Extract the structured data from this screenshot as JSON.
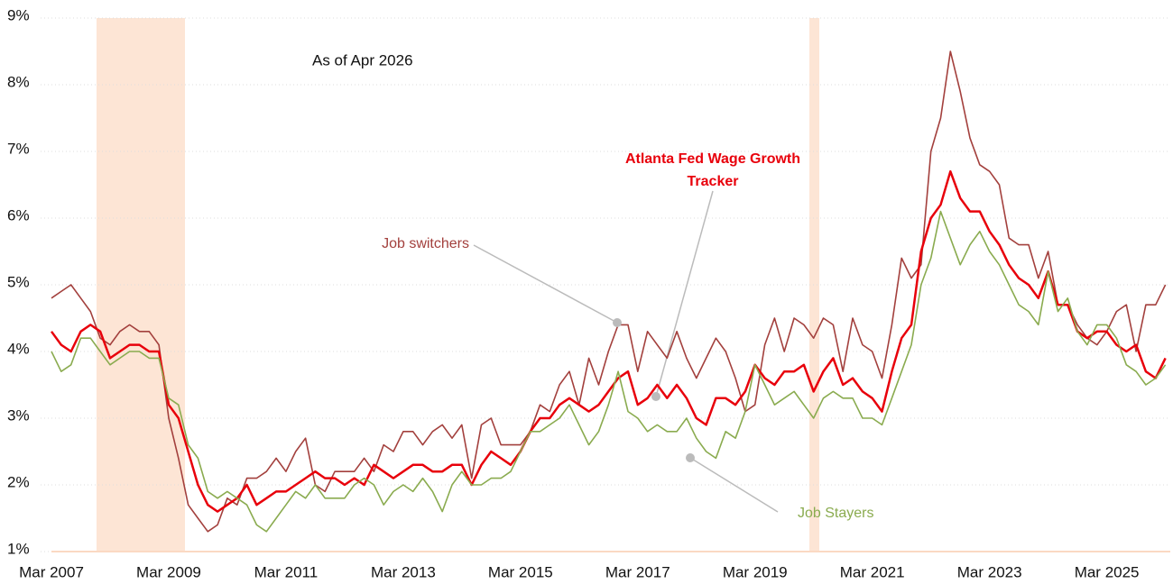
{
  "chart_data": {
    "type": "line",
    "annotation": "As of Apr 2026",
    "categories": [
      "Mar 2007",
      null,
      null,
      null,
      null,
      null,
      null,
      null,
      null,
      null,
      null,
      null,
      "Mar 2009",
      null,
      null,
      null,
      null,
      null,
      null,
      null,
      null,
      null,
      null,
      null,
      "Mar 2011",
      null,
      null,
      null,
      null,
      null,
      null,
      null,
      null,
      null,
      null,
      null,
      "Mar 2013",
      null,
      null,
      null,
      null,
      null,
      null,
      null,
      null,
      null,
      null,
      null,
      "Mar 2015",
      null,
      null,
      null,
      null,
      null,
      null,
      null,
      null,
      null,
      null,
      null,
      "Mar 2017",
      null,
      null,
      null,
      null,
      null,
      null,
      null,
      null,
      null,
      null,
      null,
      "Mar 2019",
      null,
      null,
      null,
      null,
      null,
      null,
      null,
      null,
      null,
      null,
      null,
      "Mar 2021",
      null,
      null,
      null,
      null,
      null,
      null,
      null,
      null,
      null,
      null,
      null,
      "Mar 2023",
      null,
      null,
      null,
      null,
      null,
      null,
      null,
      null,
      null,
      null,
      null,
      "Mar 2025",
      null,
      null,
      null,
      null,
      null,
      null
    ],
    "ylim": [
      1,
      9
    ],
    "yticks": [
      {
        "value": 1,
        "label": "1%"
      },
      {
        "value": 2,
        "label": "2%"
      },
      {
        "value": 3,
        "label": "3%"
      },
      {
        "value": 4,
        "label": "4%"
      },
      {
        "value": 5,
        "label": "5%"
      },
      {
        "value": 6,
        "label": "6%"
      },
      {
        "value": 7,
        "label": "7%"
      },
      {
        "value": 8,
        "label": "8%"
      },
      {
        "value": 9,
        "label": "9%"
      }
    ],
    "grid": true,
    "series": [
      {
        "name": "Job switchers",
        "color": "#a3403d",
        "values": [
          4.8,
          4.9,
          5.0,
          4.8,
          4.6,
          4.2,
          4.1,
          4.3,
          4.4,
          4.3,
          4.3,
          4.1,
          3.0,
          2.4,
          1.7,
          1.5,
          1.3,
          1.4,
          1.8,
          1.7,
          2.1,
          2.1,
          2.2,
          2.4,
          2.2,
          2.5,
          2.7,
          2.0,
          1.9,
          2.2,
          2.2,
          2.2,
          2.4,
          2.2,
          2.6,
          2.5,
          2.8,
          2.8,
          2.6,
          2.8,
          2.9,
          2.7,
          2.9,
          2.1,
          2.9,
          3.0,
          2.6,
          2.6,
          2.6,
          2.8,
          3.2,
          3.1,
          3.5,
          3.7,
          3.2,
          3.9,
          3.5,
          4.0,
          4.4,
          4.4,
          3.7,
          4.3,
          4.1,
          3.9,
          4.3,
          3.9,
          3.6,
          3.9,
          4.2,
          4.0,
          3.6,
          3.1,
          3.2,
          4.1,
          4.5,
          4.0,
          4.5,
          4.4,
          4.2,
          4.5,
          4.4,
          3.7,
          4.5,
          4.1,
          4.0,
          3.6,
          4.4,
          5.4,
          5.1,
          5.3,
          7.0,
          7.5,
          8.5,
          7.9,
          7.2,
          6.8,
          6.7,
          6.5,
          5.7,
          5.6,
          5.6,
          5.1,
          5.5,
          4.7,
          4.7,
          4.4,
          4.2,
          4.1,
          4.3,
          4.6,
          4.7,
          4.0,
          4.7,
          4.7,
          5.0
        ]
      },
      {
        "name": "Atlanta Fed Wage Growth Tracker",
        "color": "#e8000b",
        "values": [
          4.3,
          4.1,
          4.0,
          4.3,
          4.4,
          4.3,
          3.9,
          4.0,
          4.1,
          4.1,
          4.0,
          4.0,
          3.2,
          3.0,
          2.5,
          2.0,
          1.7,
          1.6,
          1.7,
          1.8,
          2.0,
          1.7,
          1.8,
          1.9,
          1.9,
          2.0,
          2.1,
          2.2,
          2.1,
          2.1,
          2.0,
          2.1,
          2.0,
          2.3,
          2.2,
          2.1,
          2.2,
          2.3,
          2.3,
          2.2,
          2.2,
          2.3,
          2.3,
          2.0,
          2.3,
          2.5,
          2.4,
          2.3,
          2.5,
          2.8,
          3.0,
          3.0,
          3.2,
          3.3,
          3.2,
          3.1,
          3.2,
          3.4,
          3.6,
          3.7,
          3.2,
          3.3,
          3.5,
          3.3,
          3.5,
          3.3,
          3.0,
          2.9,
          3.3,
          3.3,
          3.2,
          3.4,
          3.8,
          3.6,
          3.5,
          3.7,
          3.7,
          3.8,
          3.4,
          3.7,
          3.9,
          3.5,
          3.6,
          3.4,
          3.3,
          3.1,
          3.7,
          4.2,
          4.4,
          5.5,
          6.0,
          6.2,
          6.7,
          6.3,
          6.1,
          6.1,
          5.8,
          5.6,
          5.3,
          5.1,
          5.0,
          4.8,
          5.2,
          4.7,
          4.7,
          4.3,
          4.2,
          4.3,
          4.3,
          4.1,
          4.0,
          4.1,
          3.7,
          3.6,
          3.9
        ]
      },
      {
        "name": "Job Stayers",
        "color": "#8aab4f",
        "values": [
          4.0,
          3.7,
          3.8,
          4.2,
          4.2,
          4.0,
          3.8,
          3.9,
          4.0,
          4.0,
          3.9,
          3.9,
          3.3,
          3.2,
          2.6,
          2.4,
          1.9,
          1.8,
          1.9,
          1.8,
          1.7,
          1.4,
          1.3,
          1.5,
          1.7,
          1.9,
          1.8,
          2.0,
          1.8,
          1.8,
          1.8,
          2.0,
          2.1,
          2.0,
          1.7,
          1.9,
          2.0,
          1.9,
          2.1,
          1.9,
          1.6,
          2.0,
          2.2,
          2.0,
          2.0,
          2.1,
          2.1,
          2.2,
          2.5,
          2.8,
          2.8,
          2.9,
          3.0,
          3.2,
          2.9,
          2.6,
          2.8,
          3.2,
          3.7,
          3.1,
          3.0,
          2.8,
          2.9,
          2.8,
          2.8,
          3.0,
          2.7,
          2.5,
          2.4,
          2.8,
          2.7,
          3.1,
          3.8,
          3.5,
          3.2,
          3.3,
          3.4,
          3.2,
          3.0,
          3.3,
          3.4,
          3.3,
          3.3,
          3.0,
          3.0,
          2.9,
          3.3,
          3.7,
          4.1,
          5.0,
          5.4,
          6.1,
          5.7,
          5.3,
          5.6,
          5.8,
          5.5,
          5.3,
          5.0,
          4.7,
          4.6,
          4.4,
          5.2,
          4.6,
          4.8,
          4.3,
          4.1,
          4.4,
          4.4,
          4.2,
          3.8,
          3.7,
          3.5,
          3.6,
          3.8
        ]
      }
    ]
  }
}
